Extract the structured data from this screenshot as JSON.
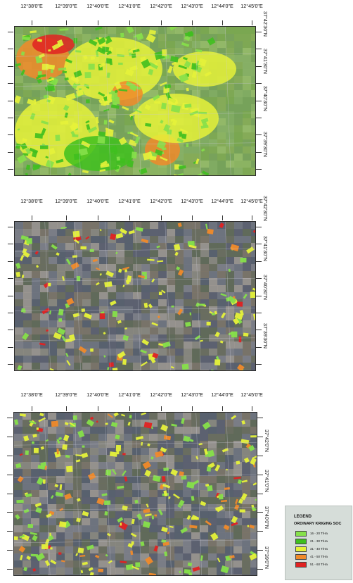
{
  "maps": [
    {
      "name": "map-panel-1",
      "lon_labels": [
        "12°38'0\"E",
        "12°39'0\"E",
        "12°40'0\"E",
        "12°41'0\"E",
        "12°42'0\"E",
        "12°43'0\"E",
        "12°44'0\"E",
        "12°45'0\"E"
      ],
      "lat_labels": [
        "37°42'30\"N",
        "37°41'30\"N",
        "37°40'30\"N",
        "37°39'30\"N"
      ]
    },
    {
      "name": "map-panel-2",
      "lon_labels": [
        "12°38'0\"E",
        "12°39'0\"E",
        "12°40'0\"E",
        "12°41'0\"E",
        "12°42'0\"E",
        "12°43'0\"E",
        "12°44'0\"E",
        "12°45'0\"E"
      ],
      "lat_labels": [
        "37°42'30\"N",
        "37°41'30\"N",
        "37°40'30\"N",
        "37°39'30\"N"
      ]
    },
    {
      "name": "map-panel-3",
      "lon_labels": [
        "12°38'0\"E",
        "12°39'0\"E",
        "12°40'0\"E",
        "12°41'0\"E",
        "12°42'0\"E",
        "12°43'0\"E",
        "12°44'0\"E",
        "12°45'0\"E"
      ],
      "lat_labels": [
        "37°42'0\"N",
        "37°41'0\"N",
        "37°40'0\"N",
        "37°39'0\"N"
      ]
    }
  ],
  "legend": {
    "title": "LEGEND",
    "subtitle": "ORDINARY KRIGING SOC",
    "classes": [
      {
        "label": "16 - 20 T/Ha",
        "color": "#86e04a"
      },
      {
        "label": "21 - 30 T/Ha",
        "color": "#3fbf1f"
      },
      {
        "label": "31 - 40 T/Ha",
        "color": "#e6f23a"
      },
      {
        "label": "41 - 50 T/Ha",
        "color": "#f08a2a"
      },
      {
        "label": "51 - 60 T/Ha",
        "color": "#e02222"
      }
    ]
  }
}
